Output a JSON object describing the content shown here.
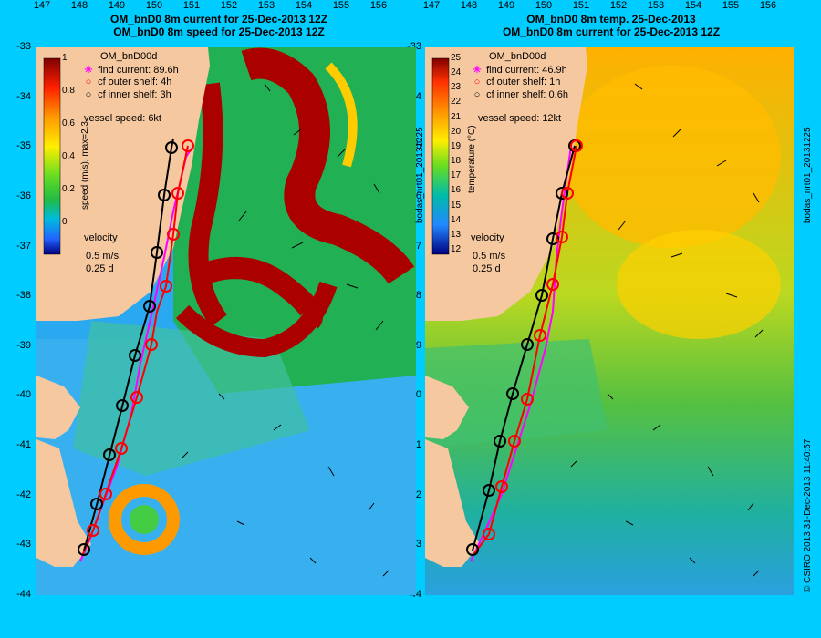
{
  "left": {
    "title_line1": "OM_bnD0 8m current for 25-Dec-2013 12Z",
    "title_line2": "OM_bnD0 8m speed for 25-Dec-2013 12Z",
    "model": "OM_bnD00d",
    "legend": [
      {
        "symbol": "✳",
        "color": "#ff00ff",
        "label": "find current: 89.6h"
      },
      {
        "symbol": "○",
        "color": "#ff0000",
        "label": "cf outer shelf: 4h"
      },
      {
        "symbol": "○",
        "color": "#000000",
        "label": "cf inner shelf: 3h"
      }
    ],
    "vessel_speed": "vessel speed: 6kt",
    "colorbar_label": "speed (m/s), max=2.3",
    "colorbar_ticks": [
      "1",
      "0.8",
      "0.6",
      "0.4",
      "0.2",
      "0"
    ],
    "velocity_label": "velocity",
    "velocity_scale": "0.5 m/s",
    "velocity_time": "0.25 d",
    "side_label": ""
  },
  "right": {
    "title_line1": "OM_bnD0 8m temp. 25-Dec-2013",
    "title_line2": "OM_bnD0 8m current for 25-Dec-2013 12Z",
    "model": "OM_bnD00d",
    "legend": [
      {
        "symbol": "✳",
        "color": "#ff00ff",
        "label": "find current: 46.9h"
      },
      {
        "symbol": "○",
        "color": "#ff0000",
        "label": "cf outer shelf: 1h"
      },
      {
        "symbol": "○",
        "color": "#000000",
        "label": "cf inner shelf: 0.6h"
      }
    ],
    "vessel_speed": "vessel speed: 12kt",
    "colorbar_label": "temperature (°C)",
    "colorbar_ticks": [
      "25",
      "24",
      "23",
      "22",
      "21",
      "20",
      "19",
      "18",
      "17",
      "16",
      "15",
      "14",
      "13",
      "12"
    ],
    "velocity_label": "velocity",
    "velocity_scale": "0.5 m/s",
    "velocity_time": "0.25 d"
  },
  "mid_side_label": "bodas_nrt01_20131225",
  "right_side_label_top": "bodas_nrt01_20131225",
  "right_side_label_bottom": "© CSIRO 2013   31-Dec-2013 11:40:57",
  "y_ticks": [
    "-33",
    "-34",
    "-35",
    "-36",
    "-37",
    "-38",
    "-39",
    "-40",
    "-41",
    "-42",
    "-43",
    "-44"
  ],
  "x_ticks": [
    "147",
    "148",
    "149",
    "150",
    "151",
    "152",
    "153",
    "154",
    "155",
    "156"
  ],
  "colors": {
    "background": "#00ccff",
    "land": "#f5c8a0",
    "track_current": "#ff00ff",
    "track_outer": "#ff0000",
    "track_inner": "#000000"
  }
}
